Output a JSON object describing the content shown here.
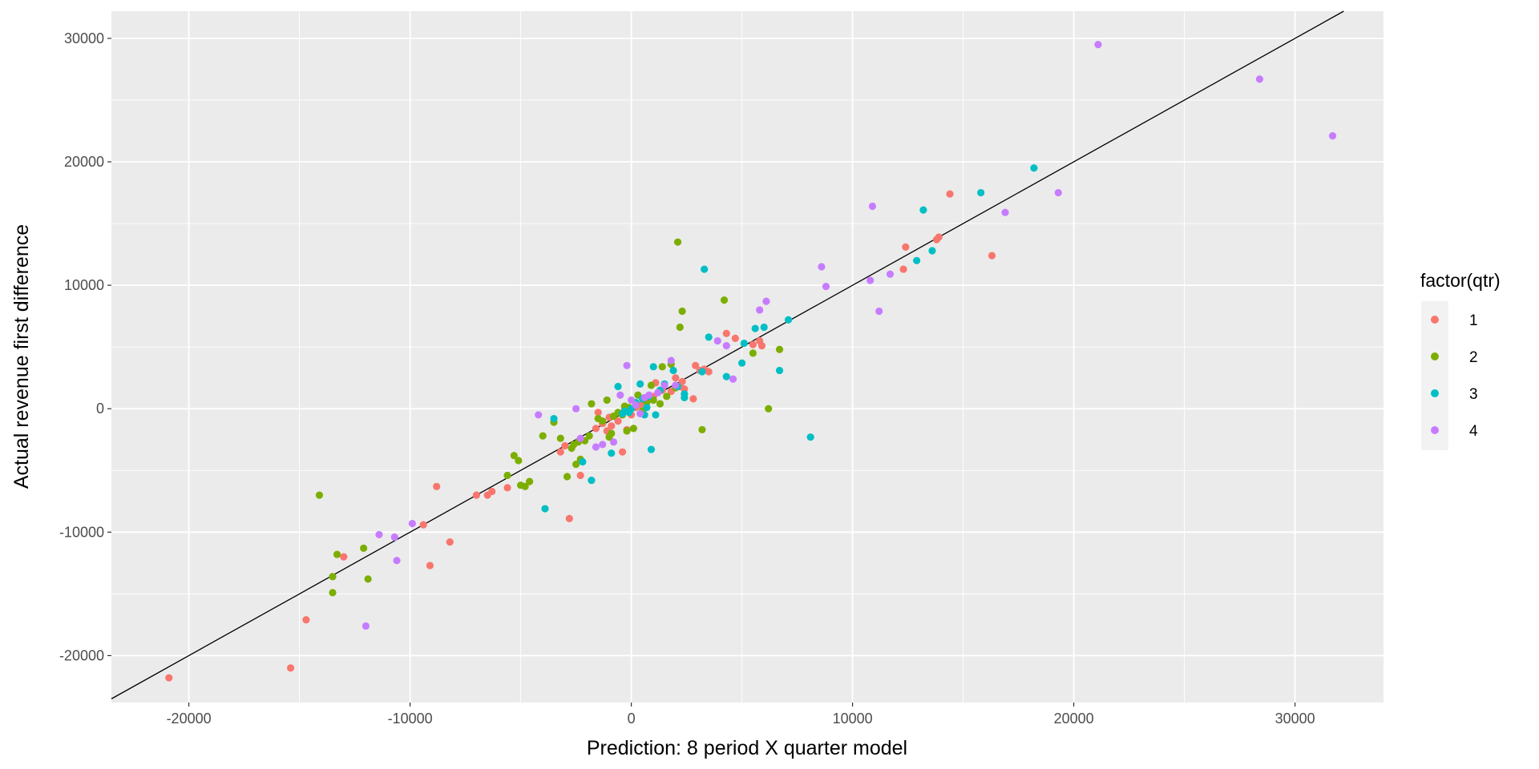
{
  "chart_data": {
    "type": "scatter",
    "title": "",
    "xlabel": "Prediction: 8 period X quarter model",
    "ylabel": "Actual revenue first difference",
    "xlim": [
      -23500,
      34000
    ],
    "ylim": [
      -23800,
      32200
    ],
    "x_ticks": [
      -20000,
      -10000,
      0,
      10000,
      20000,
      30000
    ],
    "y_ticks": [
      -20000,
      -10000,
      0,
      10000,
      20000,
      30000
    ],
    "x_tick_labels": [
      "-20000",
      "-10000",
      "0",
      "10000",
      "20000",
      "30000"
    ],
    "y_tick_labels": [
      "-20000",
      "-10000",
      "0",
      "10000",
      "20000",
      "30000"
    ],
    "grid": true,
    "background": "#EBEBEB",
    "reference_line": {
      "intercept": 0,
      "slope": 1,
      "color": "#000000"
    },
    "legend": {
      "title": "factor(qtr)",
      "placement": "right",
      "entries": [
        {
          "label": "1",
          "color": "#F8766D"
        },
        {
          "label": "2",
          "color": "#7CAE00"
        },
        {
          "label": "3",
          "color": "#00BFC4"
        },
        {
          "label": "4",
          "color": "#C77CFF"
        }
      ]
    },
    "series": [
      {
        "name": "1",
        "color": "#F8766D",
        "points": [
          [
            -20900,
            -21800
          ],
          [
            -15400,
            -21000
          ],
          [
            -14700,
            -17100
          ],
          [
            -13000,
            -12000
          ],
          [
            -9100,
            -12700
          ],
          [
            -9400,
            -9400
          ],
          [
            -8800,
            -6300
          ],
          [
            -8200,
            -10800
          ],
          [
            -7000,
            -7000
          ],
          [
            -6500,
            -7000
          ],
          [
            -6300,
            -6700
          ],
          [
            -5600,
            -6400
          ],
          [
            -3200,
            -3500
          ],
          [
            -3000,
            -3000
          ],
          [
            -2800,
            -8900
          ],
          [
            -2300,
            -5400
          ],
          [
            -1600,
            -1600
          ],
          [
            -1500,
            -300
          ],
          [
            -1300,
            -1200
          ],
          [
            -1100,
            -1800
          ],
          [
            -1000,
            -700
          ],
          [
            -900,
            -1400
          ],
          [
            -600,
            -1000
          ],
          [
            -400,
            -3500
          ],
          [
            -300,
            0
          ],
          [
            -200,
            -1700
          ],
          [
            0,
            -500
          ],
          [
            200,
            100
          ],
          [
            400,
            300
          ],
          [
            600,
            700
          ],
          [
            800,
            800
          ],
          [
            1000,
            1000
          ],
          [
            1100,
            2100
          ],
          [
            1400,
            1500
          ],
          [
            1800,
            1400
          ],
          [
            2000,
            2500
          ],
          [
            2200,
            1800
          ],
          [
            2300,
            2200
          ],
          [
            2400,
            1600
          ],
          [
            2800,
            800
          ],
          [
            2900,
            3500
          ],
          [
            3100,
            3100
          ],
          [
            3300,
            3200
          ],
          [
            3500,
            3000
          ],
          [
            4300,
            6100
          ],
          [
            4700,
            5700
          ],
          [
            5500,
            5200
          ],
          [
            5800,
            5500
          ],
          [
            5900,
            5100
          ],
          [
            12300,
            11300
          ],
          [
            12400,
            13100
          ],
          [
            13800,
            13700
          ],
          [
            13900,
            13900
          ],
          [
            14400,
            17400
          ],
          [
            16300,
            12400
          ]
        ]
      },
      {
        "name": "2",
        "color": "#7CAE00",
        "points": [
          [
            -14100,
            -7000
          ],
          [
            -13300,
            -11800
          ],
          [
            -13500,
            -13600
          ],
          [
            -13500,
            -14900
          ],
          [
            -12100,
            -11300
          ],
          [
            -11900,
            -13800
          ],
          [
            -5600,
            -5400
          ],
          [
            -5300,
            -3800
          ],
          [
            -5100,
            -4200
          ],
          [
            -5000,
            -6200
          ],
          [
            -4800,
            -6300
          ],
          [
            -4600,
            -5900
          ],
          [
            -4000,
            -2200
          ],
          [
            -3500,
            -1100
          ],
          [
            -3200,
            -2400
          ],
          [
            -2900,
            -5500
          ],
          [
            -2700,
            -3200
          ],
          [
            -2600,
            -2900
          ],
          [
            -2500,
            -4500
          ],
          [
            -2400,
            -2700
          ],
          [
            -2300,
            -4100
          ],
          [
            -2100,
            -2600
          ],
          [
            -1900,
            -2200
          ],
          [
            -1800,
            400
          ],
          [
            -1500,
            -800
          ],
          [
            -1300,
            -1000
          ],
          [
            -1100,
            700
          ],
          [
            -1000,
            -2300
          ],
          [
            -900,
            -2000
          ],
          [
            -800,
            -600
          ],
          [
            -600,
            -300
          ],
          [
            -400,
            -500
          ],
          [
            -300,
            200
          ],
          [
            -200,
            -1800
          ],
          [
            -100,
            100
          ],
          [
            100,
            -1600
          ],
          [
            200,
            300
          ],
          [
            300,
            1100
          ],
          [
            500,
            -200
          ],
          [
            700,
            500
          ],
          [
            900,
            1900
          ],
          [
            1000,
            700
          ],
          [
            1300,
            400
          ],
          [
            1400,
            3400
          ],
          [
            1600,
            1000
          ],
          [
            1800,
            3600
          ],
          [
            2000,
            1700
          ],
          [
            2100,
            13500
          ],
          [
            2200,
            6600
          ],
          [
            2300,
            7900
          ],
          [
            3200,
            -1700
          ],
          [
            4200,
            8800
          ],
          [
            5500,
            4500
          ],
          [
            6200,
            0
          ],
          [
            6700,
            4800
          ]
        ]
      },
      {
        "name": "3",
        "color": "#00BFC4",
        "points": [
          [
            -3900,
            -8100
          ],
          [
            -3500,
            -800
          ],
          [
            -2200,
            -4300
          ],
          [
            -1800,
            -5800
          ],
          [
            -900,
            -3600
          ],
          [
            -600,
            1800
          ],
          [
            -400,
            -400
          ],
          [
            -300,
            -200
          ],
          [
            -100,
            -300
          ],
          [
            0,
            0
          ],
          [
            200,
            500
          ],
          [
            400,
            2000
          ],
          [
            500,
            800
          ],
          [
            600,
            -500
          ],
          [
            700,
            100
          ],
          [
            800,
            1000
          ],
          [
            900,
            -3300
          ],
          [
            1000,
            3400
          ],
          [
            1100,
            -500
          ],
          [
            1300,
            1500
          ],
          [
            1500,
            2000
          ],
          [
            1900,
            3100
          ],
          [
            2100,
            1800
          ],
          [
            2400,
            900
          ],
          [
            2400,
            1200
          ],
          [
            3200,
            3000
          ],
          [
            3300,
            11300
          ],
          [
            3500,
            5800
          ],
          [
            4300,
            2600
          ],
          [
            5000,
            3700
          ],
          [
            5100,
            5300
          ],
          [
            5600,
            6500
          ],
          [
            6000,
            6600
          ],
          [
            6700,
            3100
          ],
          [
            7100,
            7200
          ],
          [
            8100,
            -2300
          ],
          [
            12900,
            12000
          ],
          [
            13200,
            16100
          ],
          [
            13600,
            12800
          ],
          [
            15800,
            17500
          ],
          [
            18200,
            19500
          ]
        ]
      },
      {
        "name": "4",
        "color": "#C77CFF",
        "points": [
          [
            -12000,
            -17600
          ],
          [
            -11400,
            -10200
          ],
          [
            -10700,
            -10400
          ],
          [
            -10600,
            -12300
          ],
          [
            -9900,
            -9300
          ],
          [
            -4200,
            -500
          ],
          [
            -2500,
            0
          ],
          [
            -2300,
            -2400
          ],
          [
            -1600,
            -3100
          ],
          [
            -1300,
            -2900
          ],
          [
            -800,
            -2700
          ],
          [
            -500,
            1100
          ],
          [
            -200,
            3500
          ],
          [
            0,
            700
          ],
          [
            200,
            300
          ],
          [
            400,
            -400
          ],
          [
            600,
            900
          ],
          [
            800,
            1100
          ],
          [
            1200,
            1300
          ],
          [
            1500,
            1900
          ],
          [
            1800,
            3900
          ],
          [
            2000,
            1900
          ],
          [
            3900,
            5500
          ],
          [
            4300,
            5100
          ],
          [
            4600,
            2400
          ],
          [
            5800,
            8000
          ],
          [
            6100,
            8700
          ],
          [
            8600,
            11500
          ],
          [
            8800,
            9900
          ],
          [
            10800,
            10400
          ],
          [
            10900,
            16400
          ],
          [
            11200,
            7900
          ],
          [
            11700,
            10900
          ],
          [
            16900,
            15900
          ],
          [
            19300,
            17500
          ],
          [
            21100,
            29500
          ],
          [
            28400,
            26700
          ],
          [
            31700,
            22100
          ]
        ]
      }
    ]
  }
}
